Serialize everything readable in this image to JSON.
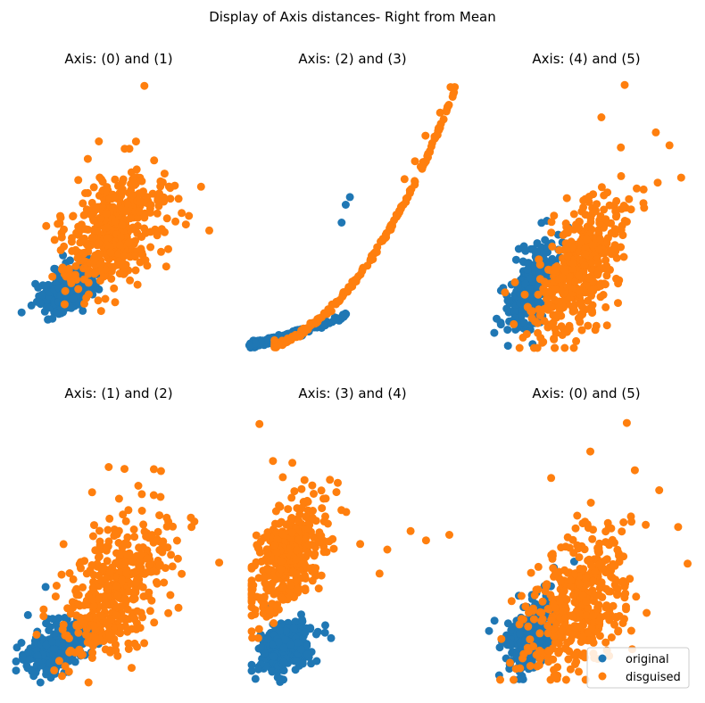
{
  "figure": {
    "title": "Display of Axis distances- Right from Mean"
  },
  "colors": {
    "original": "#1f77b4",
    "disguised": "#ff7f0e",
    "legend_border": "#cccccc"
  },
  "legend": {
    "placement": "lower-right of bottom-right panel",
    "entries": [
      "original",
      "disguised"
    ]
  },
  "chart_data": [
    {
      "type": "scatter",
      "title": "Axis: (0) and (1)",
      "axes_visible": false,
      "xlim": [
        -3,
        12
      ],
      "ylim": [
        -3,
        15
      ],
      "series": [
        {
          "name": "original",
          "dist": "gauss",
          "n": 320,
          "center": [
            0.8,
            0.6
          ],
          "spread": [
            0.9,
            0.8
          ],
          "corr": 0.45,
          "points": [
            [
              -2.6,
              -1.0
            ],
            [
              1.5,
              0.4
            ],
            [
              2.1,
              2.3
            ],
            [
              0.4,
              2.9
            ],
            [
              0.1,
              -1.1
            ],
            [
              -1.4,
              0.7
            ],
            [
              2.7,
              1.0
            ],
            [
              1.0,
              -0.7
            ]
          ]
        },
        {
          "name": "disguised",
          "dist": "gauss",
          "n": 420,
          "center": [
            4.2,
            4.6
          ],
          "spread": [
            1.9,
            2.1
          ],
          "corr": 0.45,
          "points": [
            [
              6.3,
              14.5
            ],
            [
              3.0,
              10.7
            ],
            [
              2.2,
              9.5
            ],
            [
              7.0,
              9.4
            ],
            [
              10.4,
              7.6
            ],
            [
              11.0,
              4.6
            ],
            [
              6.5,
              2.2
            ],
            [
              1.0,
              1.0
            ],
            [
              0.2,
              5.6
            ],
            [
              5.8,
              0.9
            ],
            [
              9.0,
              5.8
            ],
            [
              3.9,
              1.3
            ]
          ]
        }
      ]
    },
    {
      "type": "scatter",
      "title": "Axis: (2) and (3)",
      "axes_visible": false,
      "xlim": [
        0,
        10
      ],
      "ylim": [
        0,
        10.5
      ],
      "series": [
        {
          "name": "original",
          "dist": "curve",
          "n": 170,
          "xrange": [
            0.15,
            4.85
          ],
          "a": 0.09,
          "b": 0.17,
          "c": 0.018,
          "jitter": 0.06,
          "skew": 2.0,
          "points": [
            [
              0.1,
              0.1
            ],
            [
              4.9,
              5.9
            ],
            [
              4.7,
              5.6
            ],
            [
              4.5,
              4.9
            ]
          ]
        },
        {
          "name": "disguised",
          "dist": "curve",
          "n": 200,
          "xrange": [
            1.3,
            9.9
          ],
          "a": -0.05,
          "b": -0.02,
          "c": 0.105,
          "jitter": 0.06,
          "skew": 1.3,
          "points": [
            [
              9.9,
              10.2
            ],
            [
              9.7,
              10.2
            ],
            [
              9.2,
              9.2
            ],
            [
              8.5,
              8.3
            ],
            [
              8.0,
              7.3
            ],
            [
              7.5,
              6.6
            ],
            [
              1.3,
              0.3
            ]
          ]
        }
      ]
    },
    {
      "type": "scatter",
      "title": "Axis: (4) and (5)",
      "axes_visible": false,
      "xlim": [
        0,
        10.5
      ],
      "ylim": [
        0,
        12.5
      ],
      "series": [
        {
          "name": "original",
          "dist": "gauss",
          "n": 320,
          "center": [
            2.3,
            2.7
          ],
          "spread": [
            0.6,
            0.95
          ],
          "corr": 0.55,
          "points": [
            [
              0.5,
              0.7
            ],
            [
              1.2,
              0.1
            ],
            [
              3.2,
              5.9
            ],
            [
              4.0,
              4.9
            ],
            [
              2.1,
              4.5
            ],
            [
              4.3,
              5.6
            ]
          ]
        },
        {
          "name": "disguised",
          "dist": "gauss",
          "n": 420,
          "center": [
            4.9,
            3.6
          ],
          "spread": [
            1.2,
            1.7
          ],
          "corr": 0.55,
          "points": [
            [
              7.2,
              12.2
            ],
            [
              6.0,
              10.7
            ],
            [
              8.8,
              10.0
            ],
            [
              10.1,
              7.9
            ],
            [
              9.5,
              9.4
            ],
            [
              7.0,
              9.3
            ],
            [
              1.5,
              1.1
            ],
            [
              4.0,
              0.6
            ],
            [
              8.2,
              6.5
            ]
          ]
        }
      ]
    },
    {
      "type": "scatter",
      "title": "Axis: (1) and (2)",
      "axes_visible": false,
      "xlim": [
        -0.5,
        10
      ],
      "ylim": [
        -0.5,
        12.5
      ],
      "series": [
        {
          "name": "original",
          "dist": "gauss",
          "n": 320,
          "center": [
            1.6,
            1.4
          ],
          "spread": [
            0.75,
            0.7
          ],
          "corr": 0.4,
          "points": [
            [
              0.3,
              0.1
            ],
            [
              0.1,
              3.1
            ],
            [
              2.5,
              0.6
            ],
            [
              1.0,
              4.6
            ],
            [
              3.5,
              2.6
            ]
          ]
        },
        {
          "name": "disguised",
          "dist": "gauss",
          "n": 420,
          "center": [
            4.5,
            4.3
          ],
          "spread": [
            1.4,
            1.9
          ],
          "corr": 0.55,
          "points": [
            [
              9.8,
              5.9
            ],
            [
              4.2,
              11.0
            ],
            [
              5.0,
              10.9
            ],
            [
              5.7,
              10.0
            ],
            [
              8.4,
              7.8
            ],
            [
              7.9,
              5.3
            ],
            [
              6.5,
              2.7
            ],
            [
              6.0,
              1.6
            ],
            [
              0.9,
              3.4
            ],
            [
              5.2,
              8.7
            ]
          ]
        }
      ]
    },
    {
      "type": "scatter",
      "title": "Axis: (3) and (4)",
      "axes_visible": false,
      "xlim": [
        0,
        10.5
      ],
      "ylim": [
        0,
        14.5
      ],
      "series": [
        {
          "name": "original",
          "dist": "gauss",
          "n": 320,
          "center": [
            1.7,
            1.9
          ],
          "spread": [
            0.65,
            0.65
          ],
          "corr": 0.3,
          "points": [
            [
              0.2,
              0.2
            ],
            [
              3.8,
              3.1
            ],
            [
              4.1,
              2.4
            ],
            [
              0.8,
              4.1
            ],
            [
              2.6,
              3.4
            ]
          ]
        },
        {
          "name": "disguised",
          "dist": "gauss",
          "n": 420,
          "center": [
            1.8,
            6.7
          ],
          "spread": [
            1.0,
            1.5
          ],
          "corr": 0.5,
          "points": [
            [
              0.4,
              14.0
            ],
            [
              1.1,
              12.0
            ],
            [
              2.1,
              11.9
            ],
            [
              9.0,
              7.7
            ],
            [
              10.2,
              8.0
            ],
            [
              8.2,
              8.2
            ],
            [
              7.0,
              7.2
            ],
            [
              5.6,
              7.5
            ],
            [
              6.6,
              5.9
            ]
          ]
        }
      ]
    },
    {
      "type": "scatter",
      "title": "Axis: (0) and (5)",
      "axes_visible": false,
      "xlim": [
        -3,
        12
      ],
      "ylim": [
        -0.5,
        12.5
      ],
      "series": [
        {
          "name": "original",
          "dist": "gauss",
          "n": 320,
          "center": [
            0.4,
            1.7
          ],
          "spread": [
            0.85,
            0.75
          ],
          "corr": 0.45,
          "points": [
            [
              -2.8,
              1.9
            ],
            [
              -2.4,
              2.4
            ],
            [
              1.3,
              4.1
            ],
            [
              2.0,
              5.0
            ],
            [
              3.5,
              5.3
            ]
          ]
        },
        {
          "name": "disguised",
          "dist": "gauss",
          "n": 420,
          "center": [
            3.9,
            3.3
          ],
          "spread": [
            1.9,
            1.9
          ],
          "corr": 0.45,
          "points": [
            [
              7.4,
              12.1
            ],
            [
              4.7,
              10.7
            ],
            [
              1.8,
              9.4
            ],
            [
              11.2,
              7.0
            ],
            [
              11.9,
              5.2
            ],
            [
              9.8,
              8.8
            ],
            [
              -0.1,
              3.1
            ],
            [
              7.8,
              1.0
            ],
            [
              4.3,
              0.6
            ]
          ]
        }
      ]
    }
  ]
}
